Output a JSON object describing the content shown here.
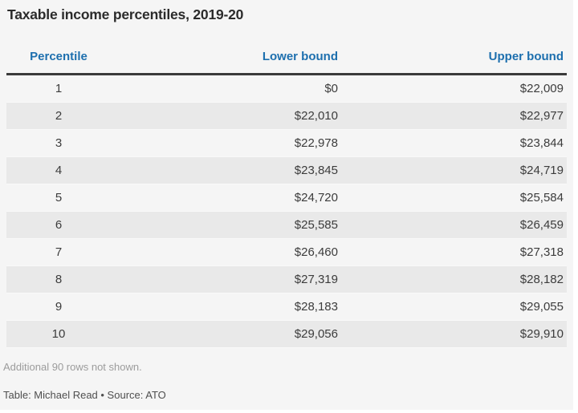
{
  "chart_data": {
    "type": "table",
    "title": "Taxable income percentiles, 2019-20",
    "columns": [
      "Percentile",
      "Lower bound",
      "Upper bound"
    ],
    "column_alignments": [
      "center",
      "right",
      "right"
    ],
    "rows": [
      [
        "1",
        "$0",
        "$22,009"
      ],
      [
        "2",
        "$22,010",
        "$22,977"
      ],
      [
        "3",
        "$22,978",
        "$23,844"
      ],
      [
        "4",
        "$23,845",
        "$24,719"
      ],
      [
        "5",
        "$24,720",
        "$25,584"
      ],
      [
        "6",
        "$25,585",
        "$26,459"
      ],
      [
        "7",
        "$26,460",
        "$27,318"
      ],
      [
        "8",
        "$27,319",
        "$28,182"
      ],
      [
        "9",
        "$28,183",
        "$29,055"
      ],
      [
        "10",
        "$29,056",
        "$29,910"
      ]
    ],
    "note": "Additional 90 rows not shown.",
    "credit": "Table: Michael Read • Source: ATO"
  },
  "colors": {
    "background": "#f5f5f5",
    "row_stripe": "#e9e9e9",
    "header_text": "#1d6fae",
    "header_rule": "#3a3a3a",
    "title_text": "#2b2b2b",
    "body_text": "#3c3c3c",
    "note_text": "#9c9c9c",
    "credit_text": "#4f4f4f"
  }
}
